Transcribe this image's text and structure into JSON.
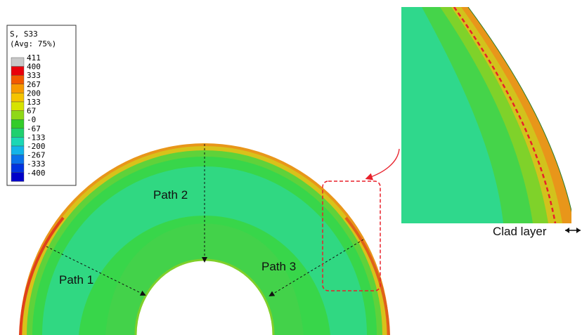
{
  "legend": {
    "title_line1": "S, S33",
    "title_line2": "(Avg: 75%)",
    "entries": [
      {
        "label": "411",
        "color": "#c8c8c8"
      },
      {
        "label": "400",
        "color": "#e8000b"
      },
      {
        "label": "333",
        "color": "#f25a00"
      },
      {
        "label": "267",
        "color": "#f79a00"
      },
      {
        "label": "200",
        "color": "#f5c400"
      },
      {
        "label": "133",
        "color": "#d6e300"
      },
      {
        "label": "67",
        "color": "#8fd817"
      },
      {
        "label": "-0",
        "color": "#33cc2a"
      },
      {
        "label": "-67",
        "color": "#1fd06e"
      },
      {
        "label": "-133",
        "color": "#1bd7b4"
      },
      {
        "label": "-200",
        "color": "#13b4e8"
      },
      {
        "label": "-267",
        "color": "#0a72ea"
      },
      {
        "label": "-333",
        "color": "#0033e0"
      },
      {
        "label": "-400",
        "color": "#0000c8"
      }
    ]
  },
  "paths": {
    "path1": "Path 1",
    "path2": "Path 2",
    "path3": "Path 3"
  },
  "inset": {
    "clad_label": "Clad layer"
  },
  "colors": {
    "ring_fill": "#38d64a",
    "ring_inner_tone": "#2fd88c",
    "clad_outer": "#e8961a",
    "clad_hot": "#e0401a",
    "highlight_box": "#e8202a"
  }
}
